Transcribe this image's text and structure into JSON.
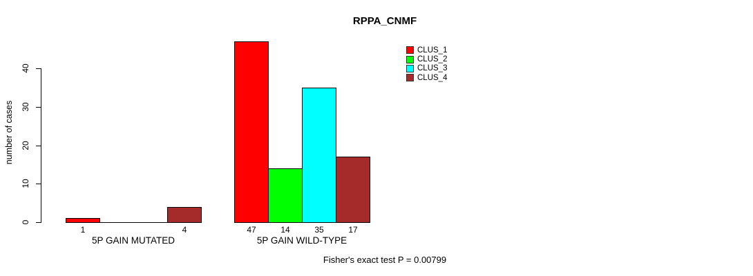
{
  "chart_data": {
    "type": "bar",
    "title": "RPPA_CNMF",
    "xlabel": "",
    "ylabel": "number of cases",
    "ylim": [
      0,
      40
    ],
    "yticks": [
      0,
      10,
      20,
      30,
      40
    ],
    "grid": false,
    "legend_position": "top-right",
    "categories": [
      "5P GAIN MUTATED",
      "5P GAIN WILD-TYPE"
    ],
    "series": [
      {
        "name": "CLUS_1",
        "color": "#FF0000",
        "values": [
          1,
          47
        ]
      },
      {
        "name": "CLUS_2",
        "color": "#00FF00",
        "values": [
          0,
          14
        ]
      },
      {
        "name": "CLUS_3",
        "color": "#00FFFF",
        "values": [
          0,
          35
        ]
      },
      {
        "name": "CLUS_4",
        "color": "#A52A2A",
        "values": [
          4,
          17
        ]
      }
    ],
    "visible_bar_labels": [
      "1",
      "4",
      "47",
      "14",
      "35",
      "17"
    ],
    "annotation": "Fisher's exact test P = 0.00799"
  },
  "legend": {
    "items": [
      {
        "label": "CLUS_1",
        "color": "#FF0000"
      },
      {
        "label": "CLUS_2",
        "color": "#00FF00"
      },
      {
        "label": "CLUS_3",
        "color": "#00FFFF"
      },
      {
        "label": "CLUS_4",
        "color": "#A52A2A"
      }
    ]
  }
}
